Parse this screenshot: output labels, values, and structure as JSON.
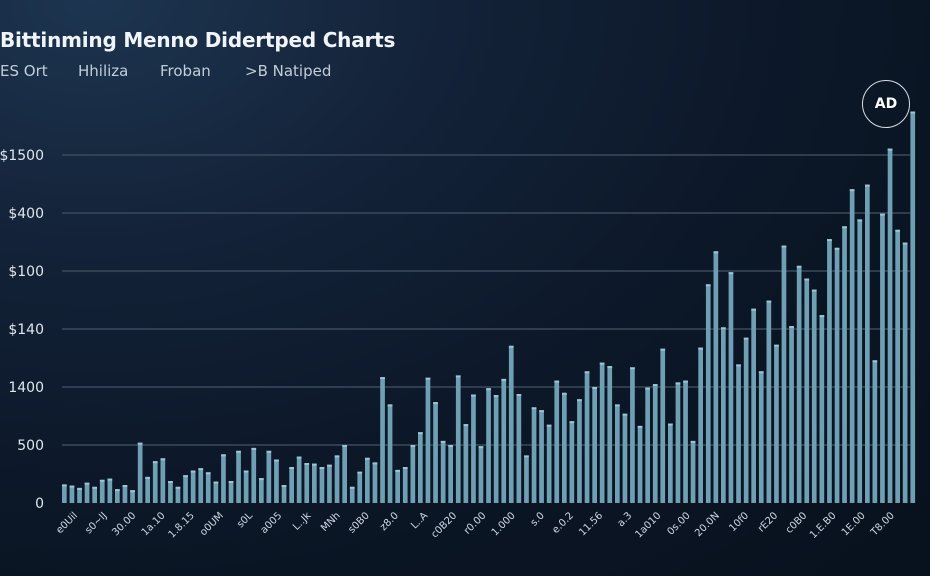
{
  "header": {
    "title": "Bittinming Menno Didertped Charts",
    "tabs": [
      "ES Ort",
      "Hhiliza",
      "Froban",
      ">B Natiped"
    ],
    "badge": "AD"
  },
  "colors": {
    "bar": "#6f9fb3",
    "bar_top": "#9cc4d2",
    "grid": "#3a4a5c"
  },
  "chart_data": {
    "type": "bar",
    "title": "Bittinming Menno Didertped Charts",
    "xlabel": "",
    "ylabel": "",
    "grid": true,
    "legend": "none",
    "y_ticks": [
      "0",
      "500",
      "1400",
      "$140",
      "$100",
      "$400",
      "$1500"
    ],
    "y_tick_positions": [
      0,
      1,
      2,
      3,
      4,
      5,
      6
    ],
    "ylim": [
      0,
      6.8
    ],
    "x_tick_labels": [
      "e0Uil",
      "s0~lJ",
      "30.00",
      "1a.10",
      "1.8.15",
      "o0UM",
      "s0L",
      "a005",
      "L..Jk",
      "MNh",
      "s0B0",
      "z8.0",
      "L..A",
      "c0B20",
      "r0.00",
      "1.000",
      "s.0",
      "e.0.2",
      "11.56",
      "a.3",
      "1a010",
      "0s.00",
      "20.0N",
      "10f0",
      "rE20",
      "c0B0",
      "1.E.B0",
      "1E.00",
      "T8.00"
    ],
    "values": [
      0.32,
      0.3,
      0.26,
      0.35,
      0.28,
      0.4,
      0.42,
      0.24,
      0.31,
      0.22,
      1.04,
      0.45,
      0.72,
      0.77,
      0.38,
      0.28,
      0.48,
      0.56,
      0.6,
      0.53,
      0.37,
      0.84,
      0.38,
      0.9,
      0.56,
      0.95,
      0.43,
      0.9,
      0.75,
      0.31,
      0.62,
      0.8,
      0.69,
      0.68,
      0.62,
      0.66,
      0.82,
      1.0,
      0.28,
      0.54,
      0.78,
      0.7,
      2.17,
      1.7,
      0.57,
      0.62,
      1.0,
      1.22,
      2.16,
      1.74,
      1.07,
      1.0,
      2.2,
      1.36,
      1.87,
      0.98,
      1.98,
      1.86,
      2.14,
      2.71,
      1.88,
      0.82,
      1.65,
      1.6,
      1.35,
      2.11,
      1.9,
      1.41,
      1.79,
      2.27,
      2.0,
      2.42,
      2.36,
      1.7,
      1.54,
      2.34,
      1.33,
      1.99,
      2.05,
      2.66,
      1.37,
      2.08,
      2.11,
      1.07,
      2.68,
      3.77,
      4.34,
      3.03,
      3.98,
      2.39,
      2.85,
      3.35,
      2.27,
      3.49,
      2.73,
      4.44,
      3.05,
      4.09,
      3.87,
      3.68,
      3.24,
      4.55,
      4.4,
      4.77,
      5.41,
      4.89,
      5.49,
      2.46,
      4.99,
      6.11,
      4.71,
      4.49,
      6.75
    ]
  }
}
